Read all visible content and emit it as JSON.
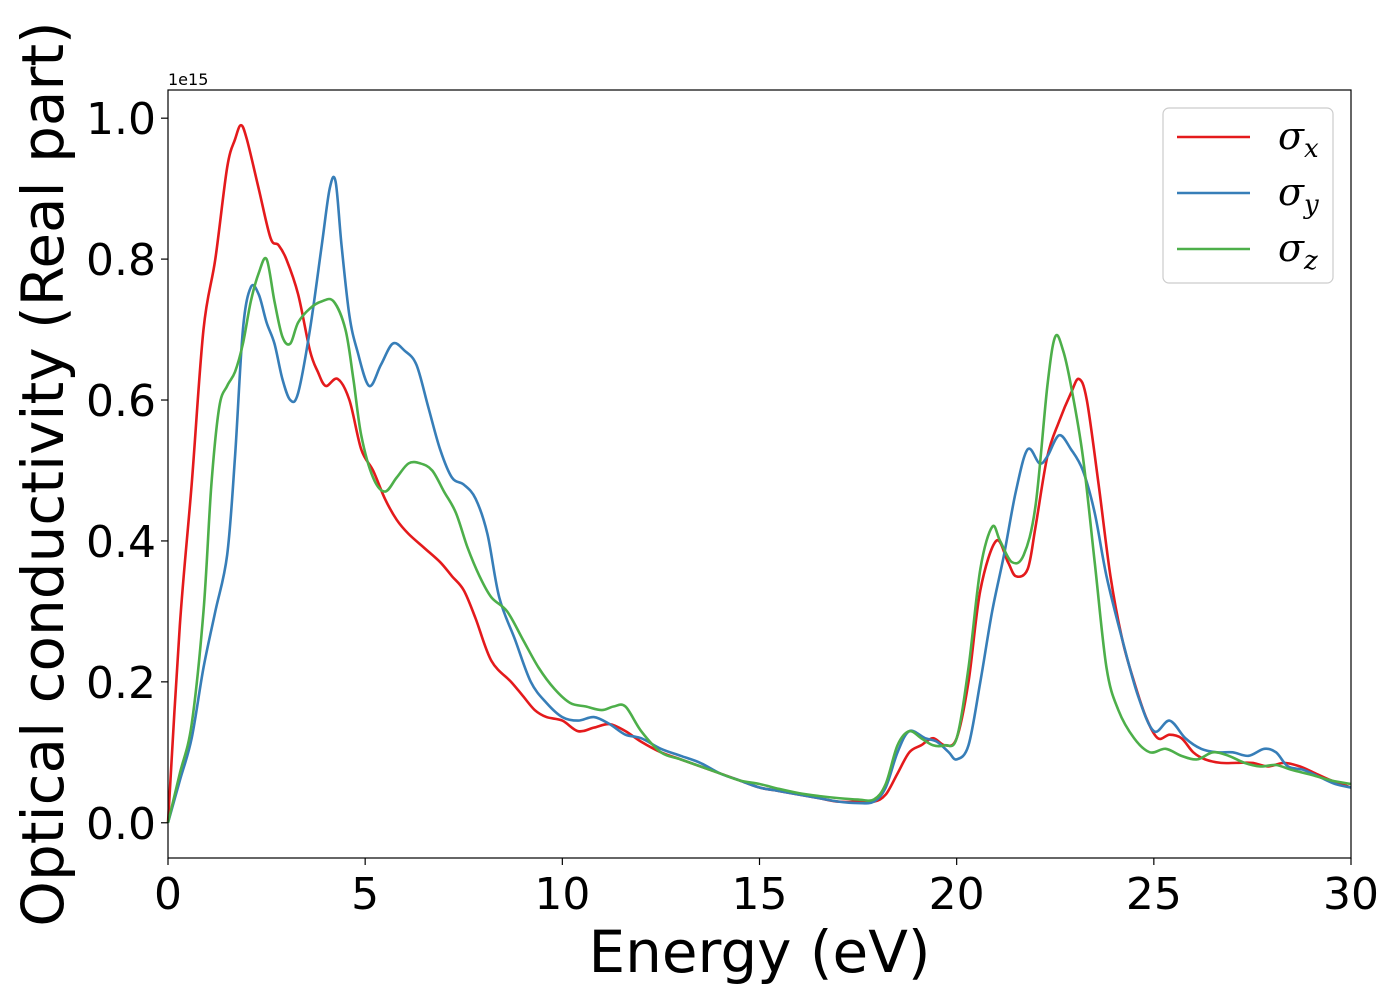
{
  "chart_data": {
    "type": "line",
    "title": "",
    "xlabel": "Energy (eV)",
    "ylabel": "Optical conductivity (Real part)",
    "y_offset_label": "1e15",
    "xlim": [
      0,
      30
    ],
    "ylim": [
      -0.05,
      1.04
    ],
    "xticks": [
      0,
      5,
      10,
      15,
      20,
      25,
      30
    ],
    "xtick_labels": [
      "0",
      "5",
      "10",
      "15",
      "20",
      "25",
      "30"
    ],
    "yticks": [
      0.0,
      0.2,
      0.4,
      0.6,
      0.8,
      1.0
    ],
    "ytick_labels": [
      "0.0",
      "0.2",
      "0.4",
      "0.6",
      "0.8",
      "1.0"
    ],
    "grid": false,
    "legend_position": "top-right",
    "series": [
      {
        "name": "σx",
        "symbol": "σ",
        "subscript": "x",
        "color": "#e41a1c",
        "x": [
          0,
          0.3,
          0.6,
          0.9,
          1.2,
          1.5,
          1.7,
          1.85,
          2.0,
          2.3,
          2.6,
          2.8,
          3.0,
          3.3,
          3.6,
          3.8,
          4.0,
          4.3,
          4.6,
          4.9,
          5.2,
          5.5,
          5.8,
          6.1,
          6.5,
          6.9,
          7.2,
          7.5,
          7.8,
          8.2,
          8.7,
          9.0,
          9.3,
          9.6,
          10.0,
          10.4,
          10.8,
          11.2,
          11.6,
          12.0,
          12.5,
          13.0,
          13.5,
          14.0,
          14.5,
          15.0,
          15.5,
          16.0,
          16.5,
          17.0,
          17.5,
          17.9,
          18.2,
          18.5,
          18.8,
          19.1,
          19.4,
          19.7,
          20.0,
          20.3,
          20.6,
          21.0,
          21.3,
          21.5,
          21.8,
          22.0,
          22.3,
          22.6,
          22.9,
          23.1,
          23.3,
          23.6,
          23.9,
          24.2,
          24.5,
          24.8,
          25.1,
          25.4,
          25.7,
          26.0,
          26.3,
          26.7,
          27.1,
          27.5,
          27.9,
          28.3,
          28.7,
          29.1,
          29.5,
          30.0
        ],
        "y": [
          0.0,
          0.28,
          0.48,
          0.7,
          0.8,
          0.93,
          0.97,
          0.99,
          0.97,
          0.9,
          0.83,
          0.82,
          0.8,
          0.75,
          0.67,
          0.64,
          0.62,
          0.63,
          0.6,
          0.53,
          0.5,
          0.46,
          0.43,
          0.41,
          0.39,
          0.37,
          0.35,
          0.33,
          0.29,
          0.23,
          0.2,
          0.18,
          0.16,
          0.15,
          0.145,
          0.13,
          0.135,
          0.14,
          0.13,
          0.115,
          0.1,
          0.09,
          0.08,
          0.07,
          0.06,
          0.05,
          0.045,
          0.04,
          0.035,
          0.03,
          0.03,
          0.03,
          0.04,
          0.07,
          0.1,
          0.11,
          0.12,
          0.11,
          0.12,
          0.2,
          0.33,
          0.4,
          0.37,
          0.35,
          0.36,
          0.42,
          0.52,
          0.57,
          0.61,
          0.63,
          0.6,
          0.48,
          0.35,
          0.26,
          0.2,
          0.15,
          0.12,
          0.125,
          0.12,
          0.1,
          0.09,
          0.085,
          0.085,
          0.085,
          0.08,
          0.085,
          0.08,
          0.07,
          0.06,
          0.05
        ]
      },
      {
        "name": "σy",
        "symbol": "σ",
        "subscript": "y",
        "color": "#377eb8",
        "x": [
          0,
          0.3,
          0.6,
          0.9,
          1.2,
          1.5,
          1.7,
          1.9,
          2.1,
          2.3,
          2.5,
          2.7,
          2.9,
          3.1,
          3.3,
          3.6,
          3.9,
          4.1,
          4.25,
          4.4,
          4.6,
          4.8,
          5.1,
          5.4,
          5.7,
          6.0,
          6.3,
          6.6,
          6.9,
          7.2,
          7.5,
          7.8,
          8.1,
          8.4,
          8.8,
          9.2,
          9.6,
          10.0,
          10.4,
          10.8,
          11.2,
          11.6,
          12.0,
          12.5,
          13.0,
          13.5,
          14.0,
          14.5,
          15.0,
          15.5,
          16.0,
          16.5,
          17.0,
          17.5,
          17.9,
          18.2,
          18.5,
          18.8,
          19.2,
          19.5,
          19.8,
          20.0,
          20.3,
          20.6,
          20.9,
          21.2,
          21.5,
          21.8,
          22.1,
          22.3,
          22.6,
          22.9,
          23.2,
          23.5,
          23.8,
          24.2,
          24.6,
          25.0,
          25.4,
          25.8,
          26.2,
          26.6,
          27.0,
          27.4,
          27.8,
          28.1,
          28.4,
          28.8,
          29.2,
          29.6,
          30.0
        ],
        "y": [
          0.0,
          0.06,
          0.12,
          0.22,
          0.3,
          0.38,
          0.52,
          0.7,
          0.76,
          0.75,
          0.71,
          0.68,
          0.63,
          0.6,
          0.61,
          0.7,
          0.82,
          0.9,
          0.91,
          0.82,
          0.72,
          0.67,
          0.62,
          0.65,
          0.68,
          0.67,
          0.65,
          0.59,
          0.53,
          0.49,
          0.48,
          0.46,
          0.41,
          0.32,
          0.26,
          0.2,
          0.17,
          0.15,
          0.145,
          0.15,
          0.14,
          0.125,
          0.12,
          0.105,
          0.095,
          0.085,
          0.07,
          0.06,
          0.05,
          0.045,
          0.04,
          0.035,
          0.03,
          0.028,
          0.03,
          0.05,
          0.1,
          0.13,
          0.12,
          0.115,
          0.1,
          0.09,
          0.11,
          0.2,
          0.3,
          0.38,
          0.47,
          0.53,
          0.51,
          0.52,
          0.55,
          0.53,
          0.5,
          0.44,
          0.35,
          0.26,
          0.18,
          0.13,
          0.145,
          0.12,
          0.105,
          0.1,
          0.1,
          0.095,
          0.105,
          0.1,
          0.08,
          0.075,
          0.065,
          0.055,
          0.05
        ]
      },
      {
        "name": "σz",
        "symbol": "σ",
        "subscript": "z",
        "color": "#4daf4a",
        "x": [
          0,
          0.3,
          0.6,
          0.9,
          1.1,
          1.3,
          1.5,
          1.7,
          1.9,
          2.1,
          2.3,
          2.5,
          2.7,
          2.9,
          3.1,
          3.3,
          3.6,
          3.9,
          4.2,
          4.5,
          4.7,
          4.9,
          5.2,
          5.5,
          5.8,
          6.1,
          6.4,
          6.7,
          7.0,
          7.3,
          7.6,
          7.9,
          8.2,
          8.6,
          9.0,
          9.4,
          9.8,
          10.2,
          10.6,
          11.0,
          11.3,
          11.6,
          12.0,
          12.5,
          13.0,
          13.5,
          14.0,
          14.5,
          15.0,
          15.5,
          16.0,
          16.5,
          17.0,
          17.5,
          17.9,
          18.2,
          18.5,
          18.8,
          19.1,
          19.4,
          19.7,
          20.0,
          20.3,
          20.6,
          20.9,
          21.1,
          21.4,
          21.7,
          22.0,
          22.3,
          22.5,
          22.7,
          22.9,
          23.2,
          23.5,
          23.8,
          24.1,
          24.5,
          24.9,
          25.3,
          25.7,
          26.1,
          26.5,
          26.9,
          27.3,
          27.7,
          28.1,
          28.5,
          29.0,
          29.5,
          30.0
        ],
        "y": [
          0.0,
          0.07,
          0.14,
          0.3,
          0.48,
          0.59,
          0.62,
          0.64,
          0.68,
          0.74,
          0.78,
          0.8,
          0.74,
          0.69,
          0.68,
          0.71,
          0.73,
          0.74,
          0.74,
          0.7,
          0.63,
          0.55,
          0.49,
          0.47,
          0.49,
          0.51,
          0.51,
          0.5,
          0.47,
          0.44,
          0.39,
          0.35,
          0.32,
          0.3,
          0.26,
          0.22,
          0.19,
          0.17,
          0.165,
          0.16,
          0.165,
          0.165,
          0.13,
          0.1,
          0.09,
          0.08,
          0.07,
          0.06,
          0.055,
          0.048,
          0.042,
          0.038,
          0.035,
          0.033,
          0.033,
          0.055,
          0.11,
          0.13,
          0.12,
          0.11,
          0.11,
          0.12,
          0.22,
          0.36,
          0.42,
          0.4,
          0.37,
          0.38,
          0.45,
          0.62,
          0.69,
          0.67,
          0.62,
          0.52,
          0.37,
          0.22,
          0.16,
          0.12,
          0.1,
          0.105,
          0.095,
          0.09,
          0.1,
          0.095,
          0.085,
          0.08,
          0.082,
          0.075,
          0.068,
          0.06,
          0.055
        ]
      }
    ]
  }
}
